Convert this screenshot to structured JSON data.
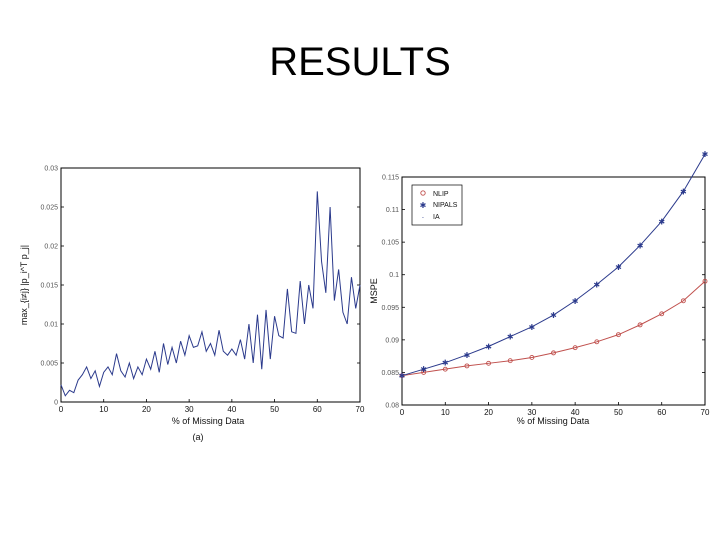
{
  "slide": {
    "title": "RESULTS"
  },
  "colors": {
    "blue": "#2b3a8c",
    "red": "#c0504d",
    "axis": "#000000"
  },
  "chart_data": [
    {
      "type": "line",
      "panel_label": "(a)",
      "xlabel": "% of Missing Data",
      "ylabel": "max_{i≠j} |p_i^T p_j|",
      "xlim": [
        0,
        70
      ],
      "ylim": [
        0,
        0.03
      ],
      "xticks": [
        "0",
        "10",
        "20",
        "30",
        "40",
        "50",
        "60",
        "70"
      ],
      "yticks": [
        "0",
        "0.005",
        "0.01",
        "0.015",
        "0.02",
        "0.025",
        "0.03"
      ],
      "grid": false,
      "series": [
        {
          "x": [
            0,
            1,
            2,
            3,
            4,
            5,
            6,
            7,
            8,
            9,
            10,
            11,
            12,
            13,
            14,
            15,
            16,
            17,
            18,
            19,
            20,
            21,
            22,
            23,
            24,
            25,
            26,
            27,
            28,
            29,
            30,
            31,
            32,
            33,
            34,
            35,
            36,
            37,
            38,
            39,
            40,
            41,
            42,
            43,
            44,
            45,
            46,
            47,
            48,
            49,
            50,
            51,
            52,
            53,
            54,
            55,
            56,
            57,
            58,
            59,
            60,
            61,
            62,
            63,
            64,
            65,
            66,
            67,
            68,
            69,
            70
          ],
          "y": [
            0.0022,
            0.0008,
            0.0015,
            0.0012,
            0.0028,
            0.0035,
            0.0045,
            0.003,
            0.004,
            0.002,
            0.0038,
            0.0045,
            0.0035,
            0.0062,
            0.004,
            0.0032,
            0.005,
            0.003,
            0.0045,
            0.0035,
            0.0055,
            0.0042,
            0.0065,
            0.0038,
            0.0075,
            0.0048,
            0.007,
            0.005,
            0.0078,
            0.006,
            0.0085,
            0.007,
            0.0072,
            0.009,
            0.0065,
            0.0075,
            0.006,
            0.0092,
            0.0065,
            0.006,
            0.0068,
            0.006,
            0.008,
            0.0055,
            0.01,
            0.005,
            0.0112,
            0.0042,
            0.0118,
            0.0055,
            0.011,
            0.0085,
            0.0082,
            0.0145,
            0.009,
            0.0088,
            0.0155,
            0.01,
            0.015,
            0.012,
            0.027,
            0.018,
            0.014,
            0.025,
            0.013,
            0.017,
            0.0115,
            0.01,
            0.016,
            0.012,
            0.015
          ]
        }
      ]
    },
    {
      "type": "line",
      "panel_label": "",
      "xlabel": "% of Missing Data",
      "ylabel": "MSPE",
      "xlim": [
        0,
        70
      ],
      "ylim": [
        0.08,
        0.115
      ],
      "xticks": [
        "0",
        "10",
        "20",
        "30",
        "40",
        "50",
        "60",
        "70"
      ],
      "yticks": [
        "0.08",
        "0.085",
        "0.09",
        "0.095",
        "0.1",
        "0.105",
        "0.11",
        "0.115"
      ],
      "grid": false,
      "legend_position": "top-left",
      "legend": [
        "NLIP",
        "NIPALS",
        "IA"
      ],
      "series": [
        {
          "name": "NLIP",
          "x": [
            0,
            5,
            10,
            15,
            20,
            25,
            30,
            35,
            40,
            45,
            50,
            55,
            60,
            65,
            70
          ],
          "y": [
            0.0845,
            0.085,
            0.0855,
            0.086,
            0.0864,
            0.0868,
            0.0873,
            0.088,
            0.0888,
            0.0897,
            0.0908,
            0.0923,
            0.094,
            0.096,
            0.099
          ]
        },
        {
          "name": "NIPALS",
          "x": [
            0,
            5,
            10,
            15,
            20,
            25,
            30,
            35,
            40,
            45,
            50,
            55,
            60,
            65,
            70
          ],
          "y": [
            0.0845,
            0.0855,
            0.0865,
            0.0877,
            0.089,
            0.0905,
            0.092,
            0.0938,
            0.096,
            0.0985,
            0.1012,
            0.1045,
            0.1082,
            0.1128,
            0.1185
          ]
        },
        {
          "name": "IA",
          "x": [
            0,
            5,
            10,
            15,
            20,
            25,
            30,
            35,
            40,
            45,
            50,
            55,
            60,
            65,
            70
          ],
          "y": [
            0.0845,
            0.085,
            0.0855,
            0.086,
            0.0864,
            0.0868,
            0.0873,
            0.088,
            0.0888,
            0.0897,
            0.0908,
            0.0923,
            0.094,
            0.096,
            0.099
          ]
        }
      ]
    }
  ]
}
